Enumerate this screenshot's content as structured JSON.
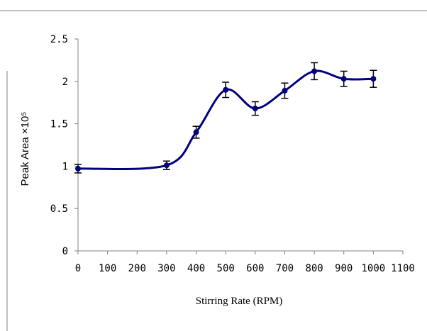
{
  "chart_data": {
    "type": "line",
    "xlabel": "Stirring Rate (RPM)",
    "ylabel": "Peak Area ×10⁵",
    "xlim": [
      0,
      1100
    ],
    "ylim": [
      0,
      2.5
    ],
    "x_ticks": [
      "0",
      "100",
      "200",
      "300",
      "400",
      "500",
      "600",
      "700",
      "800",
      "900",
      "1000",
      "1100"
    ],
    "y_ticks": [
      "0",
      "0.5",
      "1",
      "1.5",
      "2",
      "2.5"
    ],
    "grid": false,
    "legend": "none",
    "series": [
      {
        "x": [
          0,
          300,
          400,
          500,
          600,
          700,
          800,
          900,
          1000
        ],
        "y": [
          0.97,
          1.01,
          1.4,
          1.9,
          1.68,
          1.89,
          2.12,
          2.03,
          2.03
        ],
        "error": [
          0.05,
          0.05,
          0.07,
          0.09,
          0.08,
          0.09,
          0.1,
          0.09,
          0.1
        ]
      }
    ],
    "colors": {
      "series": "#000080",
      "axes": "#808080",
      "error_bars": "#000000"
    }
  }
}
